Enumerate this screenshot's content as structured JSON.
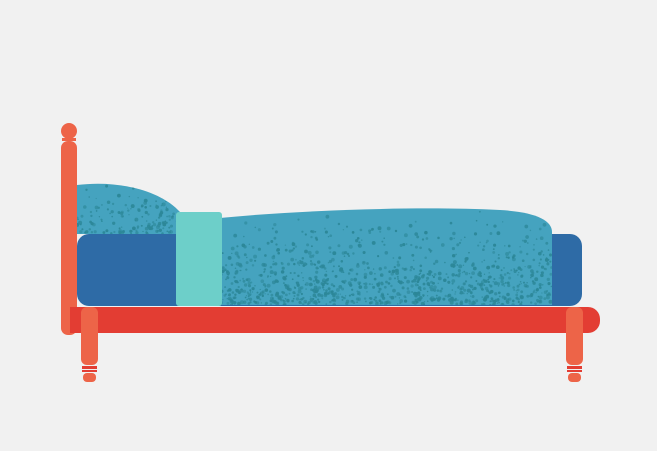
{
  "scene": {
    "subject": "bed-illustration",
    "colors": {
      "background": "#f1f1f1",
      "headboard_post": "#ed6448",
      "bed_frame": "#e33d33",
      "legs": "#ed6448",
      "mattress": "#2e6ba6",
      "blanket": "#45a3bf",
      "blanket_speckle": "#2c8798",
      "pillow": "#45a3bf",
      "sheet_fold": "#6dcfc9"
    }
  }
}
